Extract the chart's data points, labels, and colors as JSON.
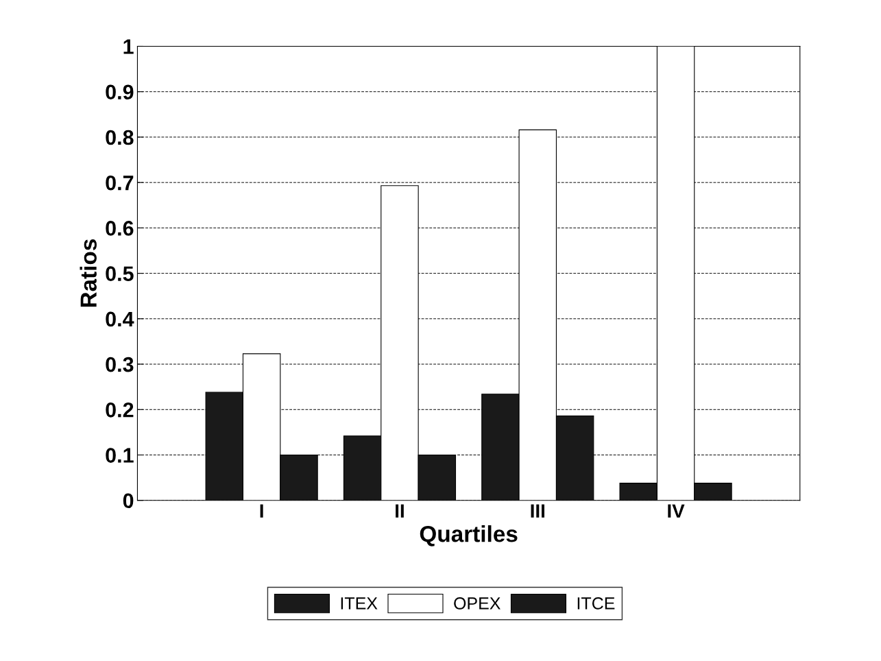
{
  "chart_data": {
    "type": "bar",
    "xlabel": "Quartiles",
    "ylabel": "Ratios",
    "categories": [
      "I",
      "II",
      "III",
      "IV"
    ],
    "series": [
      {
        "name": "ITEX",
        "color": "#1a1a1a",
        "values": [
          0.238,
          0.142,
          0.234,
          0.038
        ]
      },
      {
        "name": "OPEX",
        "color": "#ffffff",
        "values": [
          0.323,
          0.693,
          0.816,
          1.0
        ]
      },
      {
        "name": "ITCE",
        "color": "#1a1a1a",
        "values": [
          0.1,
          0.1,
          0.186,
          0.038
        ]
      }
    ],
    "ylim": [
      0,
      1
    ],
    "yticks": [
      0,
      0.1,
      0.2,
      0.3,
      0.4,
      0.5,
      0.6,
      0.7,
      0.8,
      0.9,
      1
    ],
    "grid": "y",
    "legend": "bottom"
  }
}
